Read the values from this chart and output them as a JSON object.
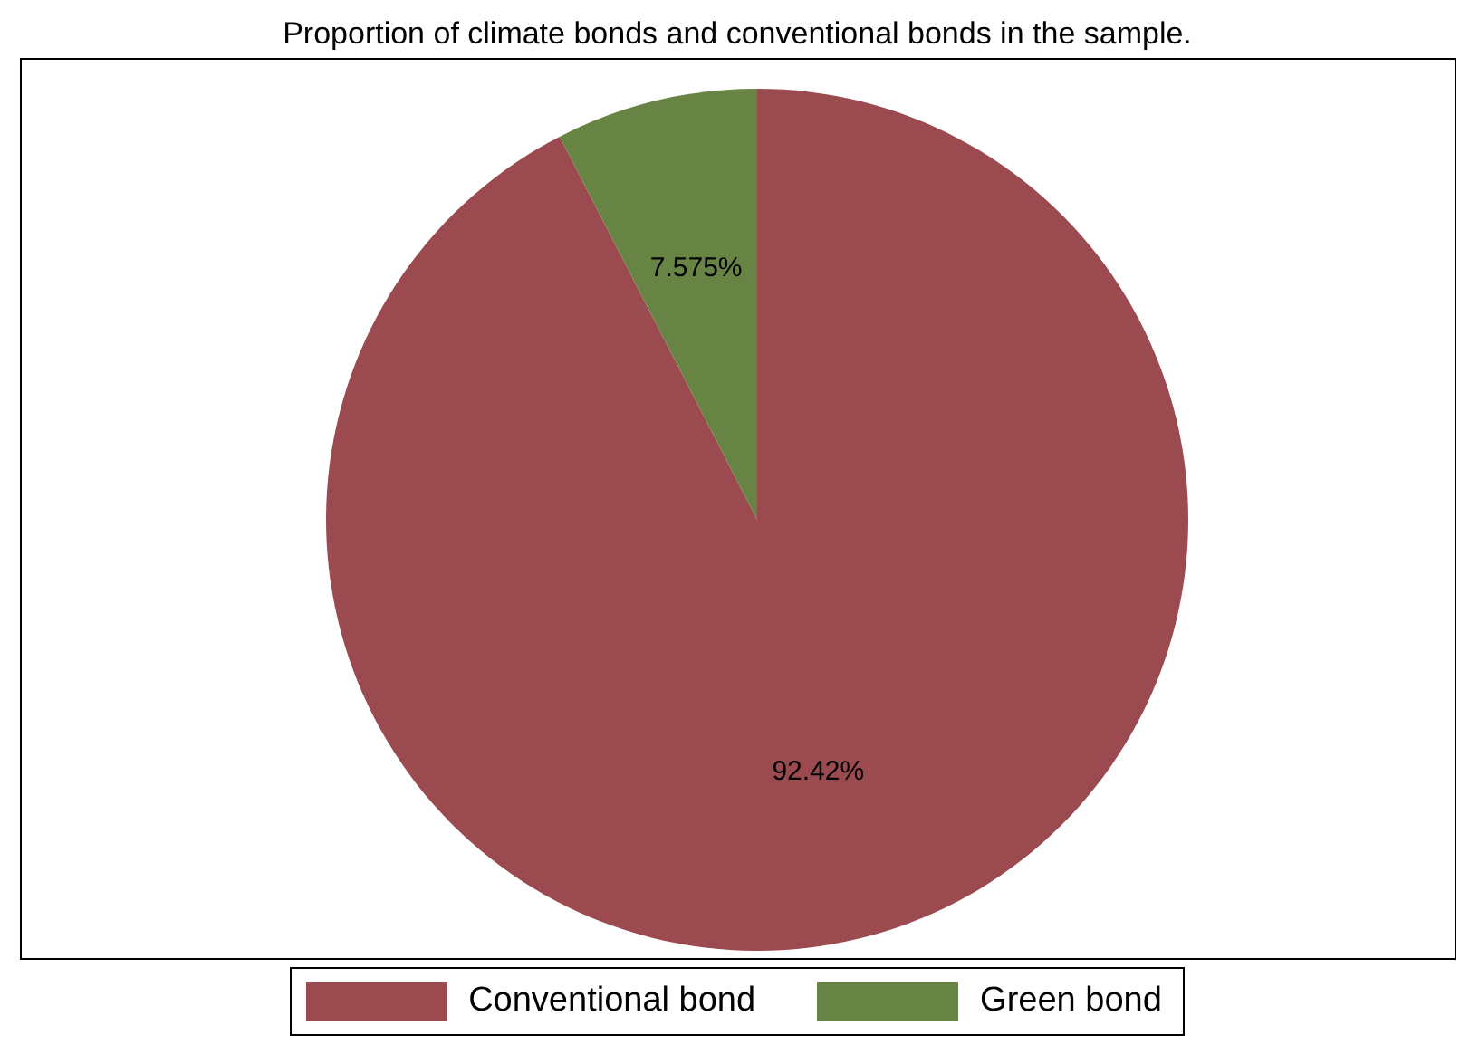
{
  "chart_data": {
    "type": "pie",
    "title": "Proportion of climate bonds and conventional bonds in the sample.",
    "categories": [
      "Conventional bond",
      "Green bond"
    ],
    "values": [
      92.42,
      7.575
    ],
    "colors": [
      "#9b4a50",
      "#688445"
    ],
    "value_labels": [
      "92.42%",
      "7.575%"
    ],
    "legend": "bottom"
  }
}
